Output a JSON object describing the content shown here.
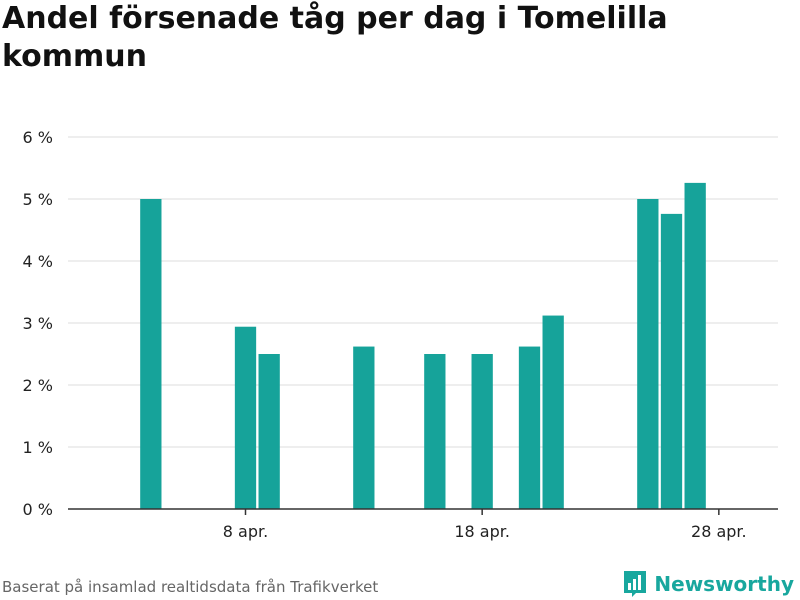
{
  "title": "Andel försenade tåg per dag i Tomelilla kommun",
  "source": "Baserat på insamlad realtidsdata från Trafikverket",
  "brand": "Newsworthy",
  "colors": {
    "bar": "#16a39a",
    "grid": "#dddddd",
    "axis": "#333333",
    "brand": "#18a79e"
  },
  "chart_data": {
    "type": "bar",
    "title": "Andel försenade tåg per dag i Tomelilla kommun",
    "xlabel": "",
    "ylabel": "",
    "ylim": [
      0,
      6
    ],
    "yticks": [
      0,
      1,
      2,
      3,
      4,
      5,
      6
    ],
    "ytick_labels": [
      "0 %",
      "1 %",
      "2 %",
      "3 %",
      "4 %",
      "5 %",
      "6 %"
    ],
    "xlim": [
      "2024-04-01",
      "2024-04-30"
    ],
    "xticks": [
      {
        "date": "2024-04-08",
        "label": "8 apr."
      },
      {
        "date": "2024-04-18",
        "label": "18 apr."
      },
      {
        "date": "2024-04-28",
        "label": "28 apr."
      }
    ],
    "grid": true,
    "bars": [
      {
        "date": "2024-04-04",
        "value": 5.0
      },
      {
        "date": "2024-04-08",
        "value": 2.94
      },
      {
        "date": "2024-04-09",
        "value": 2.5
      },
      {
        "date": "2024-04-13",
        "value": 2.62
      },
      {
        "date": "2024-04-16",
        "value": 2.5
      },
      {
        "date": "2024-04-18",
        "value": 2.5
      },
      {
        "date": "2024-04-20",
        "value": 2.62
      },
      {
        "date": "2024-04-21",
        "value": 3.12
      },
      {
        "date": "2024-04-25",
        "value": 5.0
      },
      {
        "date": "2024-04-26",
        "value": 4.76
      },
      {
        "date": "2024-04-27",
        "value": 5.26
      }
    ]
  }
}
